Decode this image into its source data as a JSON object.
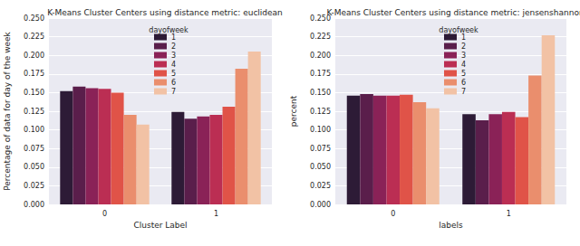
{
  "chart_data": [
    {
      "type": "bar",
      "title": "K-Means Cluster Centers using distance metric: euclidean",
      "x_label": "Cluster Label",
      "y_label": "Percentage of data for day of the week",
      "categories": [
        "0",
        "1"
      ],
      "legend_title": "dayofweek",
      "legend": "upper center",
      "grid": true,
      "ylim": [
        0,
        0.25
      ],
      "yticks": [
        {
          "value": 0,
          "label": "0.000"
        },
        {
          "value": 0.025,
          "label": "0.025"
        },
        {
          "value": 0.05,
          "label": "0.050"
        },
        {
          "value": 0.075,
          "label": "0.075"
        },
        {
          "value": 0.1,
          "label": "0.100"
        },
        {
          "value": 0.125,
          "label": "0.125"
        },
        {
          "value": 0.15,
          "label": "0.150"
        },
        {
          "value": 0.175,
          "label": "0.175"
        },
        {
          "value": 0.2,
          "label": "0.200"
        },
        {
          "value": 0.225,
          "label": "0.225"
        },
        {
          "value": 0.25,
          "label": "0.250"
        }
      ],
      "series": [
        {
          "name": "1",
          "color": "#2d1b36",
          "values": [
            0.152,
            0.124
          ]
        },
        {
          "name": "2",
          "color": "#5a1e4b",
          "values": [
            0.158,
            0.115
          ]
        },
        {
          "name": "3",
          "color": "#8a2257",
          "values": [
            0.156,
            0.118
          ]
        },
        {
          "name": "4",
          "color": "#bb2e53",
          "values": [
            0.155,
            0.12
          ]
        },
        {
          "name": "5",
          "color": "#e05348",
          "values": [
            0.15,
            0.131
          ]
        },
        {
          "name": "6",
          "color": "#ea8e6d",
          "values": [
            0.12,
            0.182
          ]
        },
        {
          "name": "7",
          "color": "#f2c2a5",
          "values": [
            0.107,
            0.205
          ]
        }
      ]
    },
    {
      "type": "bar",
      "title": "K-Means Cluster Centers using distance metric: jensenshannon",
      "x_label": "labels",
      "y_label": "percent",
      "categories": [
        "0",
        "1"
      ],
      "legend_title": "dayofweek",
      "legend": "upper center",
      "grid": true,
      "ylim": [
        0,
        0.25
      ],
      "yticks": [
        {
          "value": 0,
          "label": "0.000"
        },
        {
          "value": 0.025,
          "label": "0.025"
        },
        {
          "value": 0.05,
          "label": "0.050"
        },
        {
          "value": 0.075,
          "label": "0.075"
        },
        {
          "value": 0.1,
          "label": "0.100"
        },
        {
          "value": 0.125,
          "label": "0.125"
        },
        {
          "value": 0.15,
          "label": "0.150"
        },
        {
          "value": 0.175,
          "label": "0.175"
        },
        {
          "value": 0.2,
          "label": "0.200"
        },
        {
          "value": 0.225,
          "label": "0.225"
        },
        {
          "value": 0.25,
          "label": "0.250"
        }
      ],
      "series": [
        {
          "name": "1",
          "color": "#2d1b36",
          "values": [
            0.146,
            0.121
          ]
        },
        {
          "name": "2",
          "color": "#5a1e4b",
          "values": [
            0.148,
            0.113
          ]
        },
        {
          "name": "3",
          "color": "#8a2257",
          "values": [
            0.146,
            0.121
          ]
        },
        {
          "name": "4",
          "color": "#bb2e53",
          "values": [
            0.146,
            0.124
          ]
        },
        {
          "name": "5",
          "color": "#e05348",
          "values": [
            0.147,
            0.117
          ]
        },
        {
          "name": "6",
          "color": "#ea8e6d",
          "values": [
            0.137,
            0.173
          ]
        },
        {
          "name": "7",
          "color": "#f2c2a5",
          "values": [
            0.129,
            0.227
          ]
        }
      ]
    }
  ]
}
